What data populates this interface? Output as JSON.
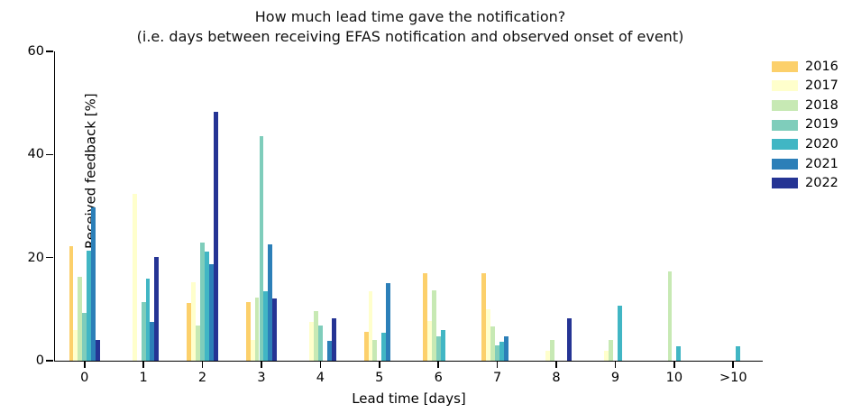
{
  "chart_data": {
    "type": "bar",
    "title": "How much lead time gave the notification?",
    "subtitle": "(i.e. days between receiving EFAS notification and observed onset of event)",
    "xlabel": "Lead time [days]",
    "ylabel": "Received feedback [%]",
    "ylim": [
      0,
      60
    ],
    "yticks": [
      0,
      20,
      40,
      60
    ],
    "grid": false,
    "legend_position": "upper-right-outside",
    "categories": [
      "0",
      "1",
      "2",
      "3",
      "4",
      "5",
      "6",
      "7",
      "8",
      "9",
      "10",
      ">10"
    ],
    "series": [
      {
        "name": "2016",
        "color": "#fcd06b",
        "values": [
          22.3,
          0,
          11.2,
          11.3,
          0,
          5.6,
          16.9,
          16.9,
          0,
          0,
          0,
          0
        ]
      },
      {
        "name": "2017",
        "color": "#ffffcc",
        "values": [
          5.9,
          32.3,
          15.2,
          4.0,
          7.6,
          13.5,
          7.7,
          9.9,
          2.0,
          1.9,
          0,
          0
        ]
      },
      {
        "name": "2018",
        "color": "#c7e9b4",
        "values": [
          16.2,
          0,
          6.9,
          12.2,
          9.6,
          4.1,
          13.6,
          6.6,
          4.0,
          4.0,
          17.4,
          0
        ]
      },
      {
        "name": "2019",
        "color": "#7fcdbb",
        "values": [
          9.2,
          11.4,
          22.9,
          43.6,
          6.9,
          0,
          4.7,
          3.0,
          0,
          0,
          0,
          0
        ]
      },
      {
        "name": "2020",
        "color": "#41b6c4",
        "values": [
          21.3,
          15.9,
          21.2,
          13.5,
          0,
          5.4,
          5.9,
          3.6,
          0,
          10.7,
          2.8,
          2.8
        ]
      },
      {
        "name": "2021",
        "color": "#2c7fb8",
        "values": [
          29.8,
          7.6,
          18.8,
          22.6,
          3.8,
          15.1,
          0,
          4.7,
          0,
          0,
          0,
          0
        ]
      },
      {
        "name": "2022",
        "color": "#253494",
        "values": [
          4.1,
          20.2,
          48.2,
          12.1,
          8.2,
          0,
          0,
          0,
          8.3,
          0,
          0,
          0
        ]
      }
    ]
  }
}
